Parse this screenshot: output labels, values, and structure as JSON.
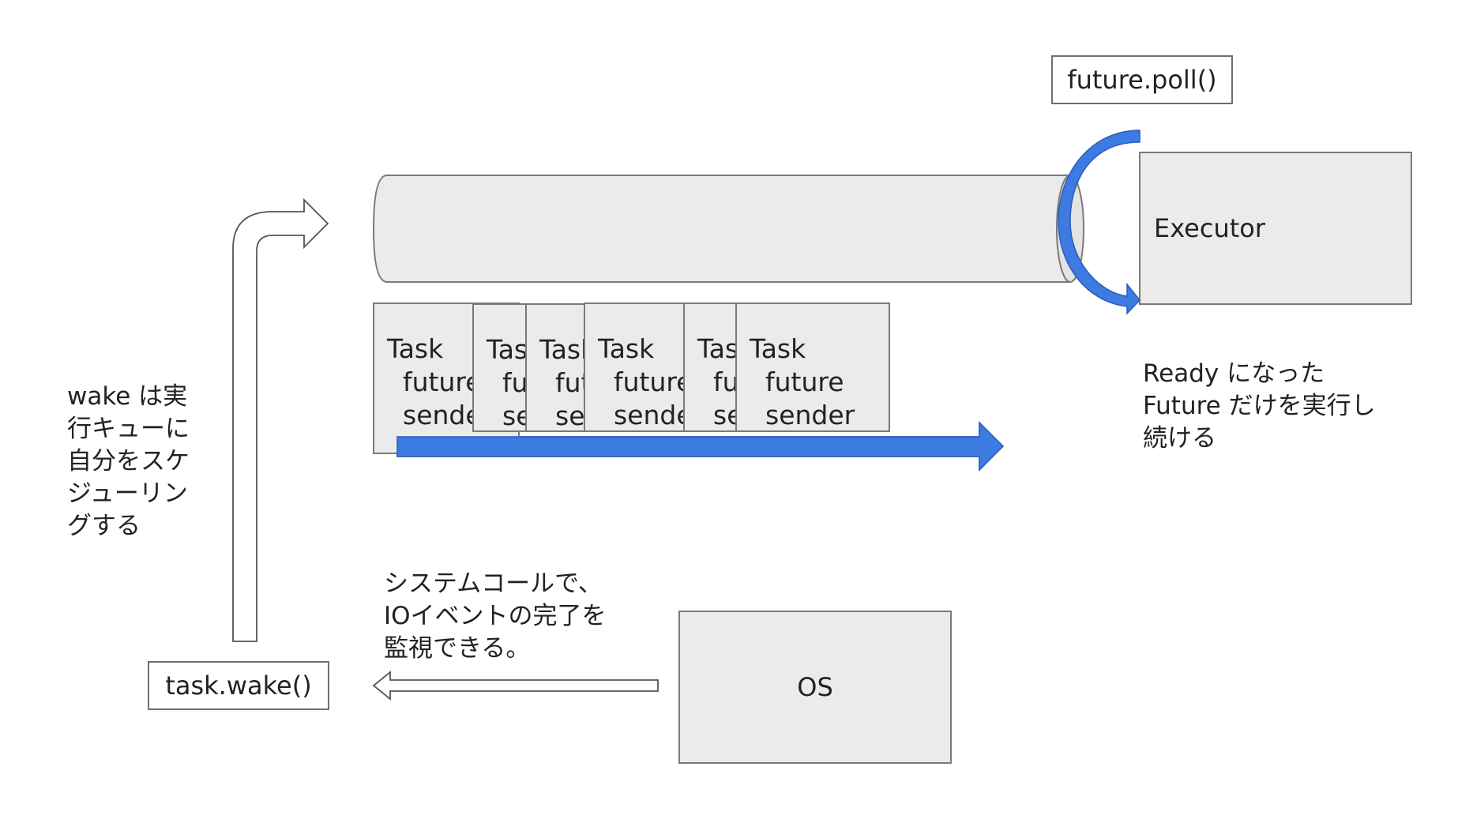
{
  "labels": {
    "future_poll": "future.poll()",
    "executor": "Executor",
    "ready_text": "Ready になった\nFuture だけを実行し\n続ける",
    "wake_text": "wake は実\n行キューに\n自分をスケ\nジューリン\nグする",
    "syscall_text": "システムコールで、\nIOイベントの完了を\n監視できる。",
    "task_wake": "task.wake()",
    "os": "OS"
  },
  "tasks": [
    {
      "title": "Task",
      "field1": "future",
      "field2": "sender"
    },
    {
      "title": "Task",
      "field1": "future",
      "field2": "sender"
    },
    {
      "title": "Task",
      "field1": "future",
      "field2": "sender"
    },
    {
      "title": "Task",
      "field1": "future",
      "field2": "sender"
    },
    {
      "title": "Task",
      "field1": "future",
      "field2": "sender"
    },
    {
      "title": "Task",
      "field1": "future",
      "field2": "sender"
    }
  ],
  "colors": {
    "accent_blue": "#3d7be3",
    "accent_blue_dark": "#2a5db8",
    "box_fill": "#ebebeb",
    "box_border": "#7a7a7a"
  }
}
